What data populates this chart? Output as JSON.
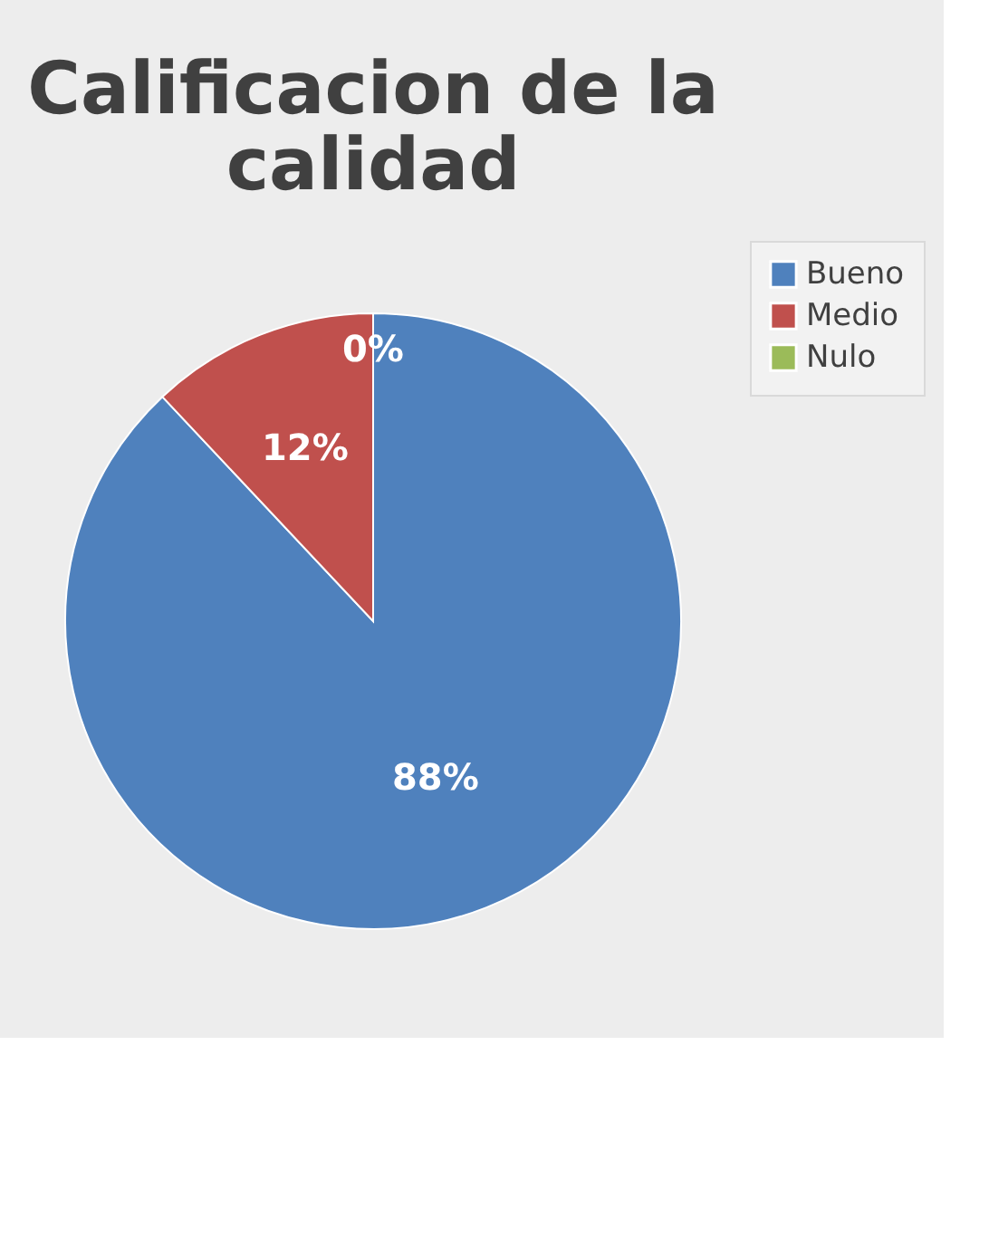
{
  "chart_data": {
    "type": "pie",
    "title": "Calificacion de la calidad",
    "categories": [
      "Bueno",
      "Medio",
      "Nulo"
    ],
    "values": [
      88,
      12,
      0
    ],
    "colors": [
      "#4f81bd",
      "#c0504d",
      "#9bbb59"
    ],
    "data_labels": true,
    "value_labels": [
      "88%",
      "12%",
      "0%"
    ],
    "legend": "right"
  }
}
